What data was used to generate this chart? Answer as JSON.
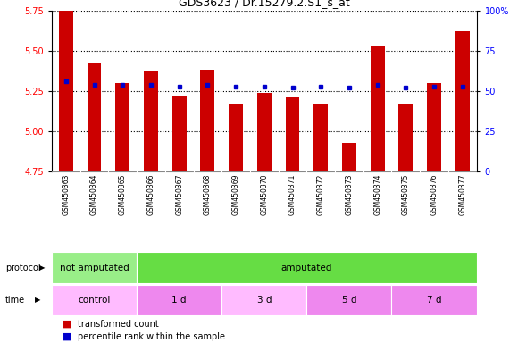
{
  "title": "GDS3623 / Dr.15279.2.S1_s_at",
  "samples": [
    "GSM450363",
    "GSM450364",
    "GSM450365",
    "GSM450366",
    "GSM450367",
    "GSM450368",
    "GSM450369",
    "GSM450370",
    "GSM450371",
    "GSM450372",
    "GSM450373",
    "GSM450374",
    "GSM450375",
    "GSM450376",
    "GSM450377"
  ],
  "red_values": [
    5.75,
    5.42,
    5.3,
    5.37,
    5.22,
    5.38,
    5.17,
    5.24,
    5.21,
    5.17,
    4.93,
    5.53,
    5.17,
    5.3,
    5.62
  ],
  "blue_values": [
    5.31,
    5.285,
    5.285,
    5.285,
    5.275,
    5.285,
    5.275,
    5.275,
    5.27,
    5.275,
    5.27,
    5.285,
    5.27,
    5.275,
    5.275
  ],
  "ymin": 4.75,
  "ymax": 5.75,
  "y2min": 0,
  "y2max": 100,
  "yticks": [
    4.75,
    5.0,
    5.25,
    5.5,
    5.75
  ],
  "y2ticks": [
    0,
    25,
    50,
    75,
    100
  ],
  "y2ticklabels": [
    "0",
    "25",
    "50",
    "75",
    "100%"
  ],
  "bar_color": "#CC0000",
  "dot_color": "#0000CC",
  "protocol_groups": [
    {
      "label": "not amputated",
      "start": 0,
      "end": 3,
      "color": "#99EE88"
    },
    {
      "label": "amputated",
      "start": 3,
      "end": 15,
      "color": "#66DD44"
    }
  ],
  "time_groups": [
    {
      "label": "control",
      "start": 0,
      "end": 3,
      "color": "#FFBBFF"
    },
    {
      "label": "1 d",
      "start": 3,
      "end": 6,
      "color": "#EE88EE"
    },
    {
      "label": "3 d",
      "start": 6,
      "end": 9,
      "color": "#FFBBFF"
    },
    {
      "label": "5 d",
      "start": 9,
      "end": 12,
      "color": "#EE88EE"
    },
    {
      "label": "7 d",
      "start": 12,
      "end": 15,
      "color": "#EE88EE"
    }
  ],
  "legend_items": [
    {
      "label": "transformed count",
      "color": "#CC0000"
    },
    {
      "label": "percentile rank within the sample",
      "color": "#0000CC"
    }
  ],
  "bar_width": 0.5,
  "sample_bg_color": "#CCCCCC",
  "ax_bg_color": "#FFFFFF"
}
